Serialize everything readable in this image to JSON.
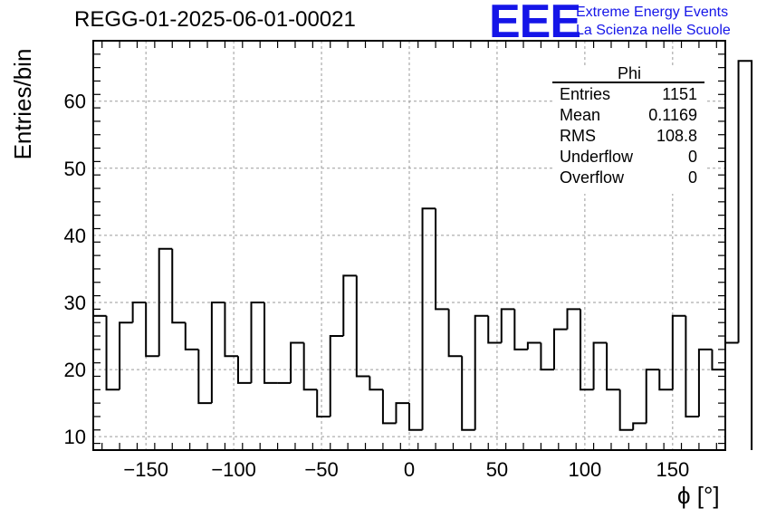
{
  "header": {
    "title": "REGG-01-2025-06-01-00021",
    "logo": "EEE",
    "logo_line1": "Extreme Energy Events",
    "logo_line2": "La Scienza nelle Scuole"
  },
  "stats": {
    "name": "Phi",
    "rows": [
      {
        "label": "Entries",
        "value": "1151"
      },
      {
        "label": "Mean",
        "value": "0.1169"
      },
      {
        "label": "RMS",
        "value": "108.8"
      },
      {
        "label": "Underflow",
        "value": "0"
      },
      {
        "label": "Overflow",
        "value": "0"
      }
    ]
  },
  "chart_data": {
    "type": "bar",
    "style": "step-histogram",
    "title": "REGG-01-2025-06-01-00021",
    "xlabel": "ϕ [°]",
    "ylabel": "Entries/bin",
    "xlim": [
      -180,
      180
    ],
    "ylim": [
      8,
      69
    ],
    "bin_width": 7.5,
    "x_ticks": [
      -150,
      -100,
      -50,
      0,
      50,
      100,
      150
    ],
    "x_tick_labels": [
      "−150",
      "−100",
      "−50",
      "0",
      "50",
      "100",
      "150"
    ],
    "y_ticks": [
      10,
      20,
      30,
      40,
      50,
      60
    ],
    "y_tick_labels": [
      "10",
      "20",
      "30",
      "40",
      "50",
      "60"
    ],
    "grid": true,
    "values": [
      28,
      17,
      27,
      30,
      22,
      38,
      27,
      23,
      15,
      30,
      22,
      18,
      30,
      18,
      18,
      24,
      17,
      13,
      25,
      34,
      19,
      17,
      12,
      15,
      11,
      44,
      29,
      22,
      11,
      28,
      24,
      29,
      23,
      24,
      20,
      26,
      29,
      17,
      24,
      17,
      11,
      12,
      20,
      17,
      28,
      13,
      23,
      20,
      24,
      66
    ],
    "line_color": "#000000"
  }
}
